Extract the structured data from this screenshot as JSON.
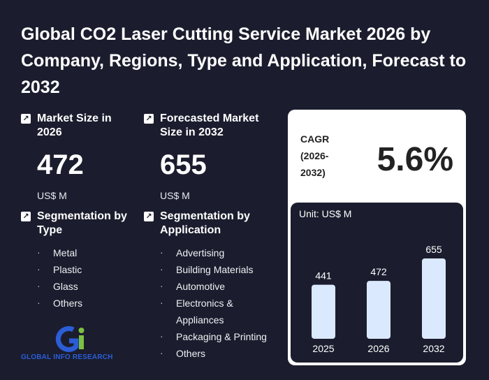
{
  "title": "Global CO2 Laser Cutting Service Market 2026 by Company, Regions, Type and Application, Forecast to 2032",
  "market_size": {
    "label": "Market Size in 2026",
    "value": "472",
    "unit": "US$ M"
  },
  "forecast": {
    "label": "Forecasted Market Size in 2032",
    "value": "655",
    "unit": "US$ M"
  },
  "seg_type": {
    "label": "Segmentation by Type",
    "items": [
      "Metal",
      "Plastic",
      "Glass",
      "Others"
    ]
  },
  "seg_app": {
    "label": "Segmentation by Application",
    "items": [
      "Advertising",
      "Building Materials",
      "Automotive",
      "Electronics & Appliances",
      "Packaging & Printing",
      "Others"
    ]
  },
  "cagr": {
    "label": "CAGR (2026-2032)",
    "value": "5.6%"
  },
  "logo": {
    "text": "GLOBAL INFO RESEARCH"
  },
  "chart_data": {
    "type": "bar",
    "unit_label": "Unit: US$ M",
    "categories": [
      "2025",
      "2026",
      "2032"
    ],
    "values": [
      441,
      472,
      655
    ],
    "ylim": [
      0,
      700
    ]
  },
  "colors": {
    "background": "#1b1d2e",
    "bar": "#dbe9ff",
    "logo_blue": "#2b5dd6",
    "logo_green": "#7cc142"
  }
}
